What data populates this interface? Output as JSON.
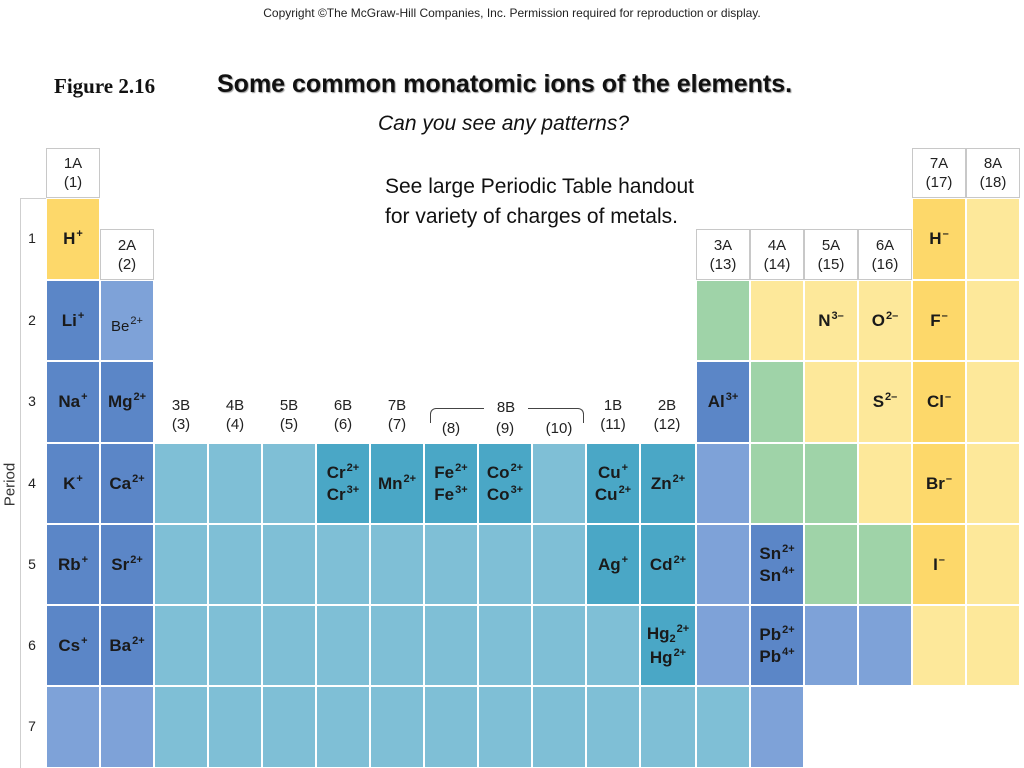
{
  "header": {
    "copyright": "Copyright ©The McGraw-Hill Companies, Inc.  Permission required for reproduction or display.",
    "figure_label": "Figure 2.16",
    "title": "Some common monatomic ions of the elements.",
    "subtitle": "Can you see any patterns?",
    "note": "See large Periodic Table handout for variety of charges of metals."
  },
  "axis": {
    "period_label": "Period",
    "periods": [
      "1",
      "2",
      "3",
      "4",
      "5",
      "6",
      "7"
    ]
  },
  "groups": {
    "g1A": {
      "line1": "1A",
      "line2": "(1)"
    },
    "g2A": {
      "line1": "2A",
      "line2": "(2)"
    },
    "g3B": {
      "line1": "3B",
      "line2": "(3)"
    },
    "g4B": {
      "line1": "4B",
      "line2": "(4)"
    },
    "g5B": {
      "line1": "5B",
      "line2": "(5)"
    },
    "g6B": {
      "line1": "6B",
      "line2": "(6)"
    },
    "g7B": {
      "line1": "7B",
      "line2": "(7)"
    },
    "g8B_label": "8B",
    "g8": "(8)",
    "g9": "(9)",
    "g10": "(10)",
    "g1B": {
      "line1": "1B",
      "line2": "(11)"
    },
    "g2B": {
      "line1": "2B",
      "line2": "(12)"
    },
    "g3A": {
      "line1": "3A",
      "line2": "(13)"
    },
    "g4A": {
      "line1": "4A",
      "line2": "(14)"
    },
    "g5A": {
      "line1": "5A",
      "line2": "(15)"
    },
    "g6A": {
      "line1": "6A",
      "line2": "(16)"
    },
    "g7A": {
      "line1": "7A",
      "line2": "(17)"
    },
    "g8A": {
      "line1": "8A",
      "line2": "(18)"
    }
  },
  "colors": {
    "alkali": "#5b86c7",
    "alkaline": "#7ea2d8",
    "transition": "#7fbfd6",
    "transition_ion": "#4aa7c6",
    "post_transition": "#7ea2d8",
    "metalloid": "#9fd3a8",
    "nonmetal": "#fde89a",
    "halogen": "#fdd86a",
    "hydrogen": "#fdd86a"
  },
  "ions": {
    "H": {
      "sym": "H",
      "charge": "+"
    },
    "Li": {
      "sym": "Li",
      "charge": "+"
    },
    "Be": {
      "sym": "Be",
      "charge": "2+"
    },
    "Na": {
      "sym": "Na",
      "charge": "+"
    },
    "Mg": {
      "sym": "Mg",
      "charge": "2+"
    },
    "K": {
      "sym": "K",
      "charge": "+"
    },
    "Ca": {
      "sym": "Ca",
      "charge": "2+"
    },
    "Rb": {
      "sym": "Rb",
      "charge": "+"
    },
    "Sr": {
      "sym": "Sr",
      "charge": "2+"
    },
    "Cs": {
      "sym": "Cs",
      "charge": "+"
    },
    "Ba": {
      "sym": "Ba",
      "charge": "2+"
    },
    "Cr2": {
      "sym": "Cr",
      "charge": "2+"
    },
    "Cr3": {
      "sym": "Cr",
      "charge": "3+"
    },
    "Mn": {
      "sym": "Mn",
      "charge": "2+"
    },
    "Fe2": {
      "sym": "Fe",
      "charge": "2+"
    },
    "Fe3": {
      "sym": "Fe",
      "charge": "3+"
    },
    "Co2": {
      "sym": "Co",
      "charge": "2+"
    },
    "Co3": {
      "sym": "Co",
      "charge": "3+"
    },
    "Cu1": {
      "sym": "Cu",
      "charge": "+"
    },
    "Cu2": {
      "sym": "Cu",
      "charge": "2+"
    },
    "Zn": {
      "sym": "Zn",
      "charge": "2+"
    },
    "Ag": {
      "sym": "Ag",
      "charge": "+"
    },
    "Cd": {
      "sym": "Cd",
      "charge": "2+"
    },
    "Hg22": {
      "sym": "Hg",
      "sub": "2",
      "charge": "2+"
    },
    "Hg2": {
      "sym": "Hg",
      "charge": "2+"
    },
    "Al": {
      "sym": "Al",
      "charge": "3+"
    },
    "Sn2": {
      "sym": "Sn",
      "charge": "2+"
    },
    "Sn4": {
      "sym": "Sn",
      "charge": "4+"
    },
    "Pb2": {
      "sym": "Pb",
      "charge": "2+"
    },
    "Pb4": {
      "sym": "Pb",
      "charge": "4+"
    },
    "N": {
      "sym": "N",
      "charge": "3–"
    },
    "O": {
      "sym": "O",
      "charge": "2–"
    },
    "S": {
      "sym": "S",
      "charge": "2–"
    },
    "Hm": {
      "sym": "H",
      "charge": "–"
    },
    "F": {
      "sym": "F",
      "charge": "–"
    },
    "Cl": {
      "sym": "Cl",
      "charge": "–"
    },
    "Br": {
      "sym": "Br",
      "charge": "–"
    },
    "I": {
      "sym": "I",
      "charge": "–"
    }
  }
}
